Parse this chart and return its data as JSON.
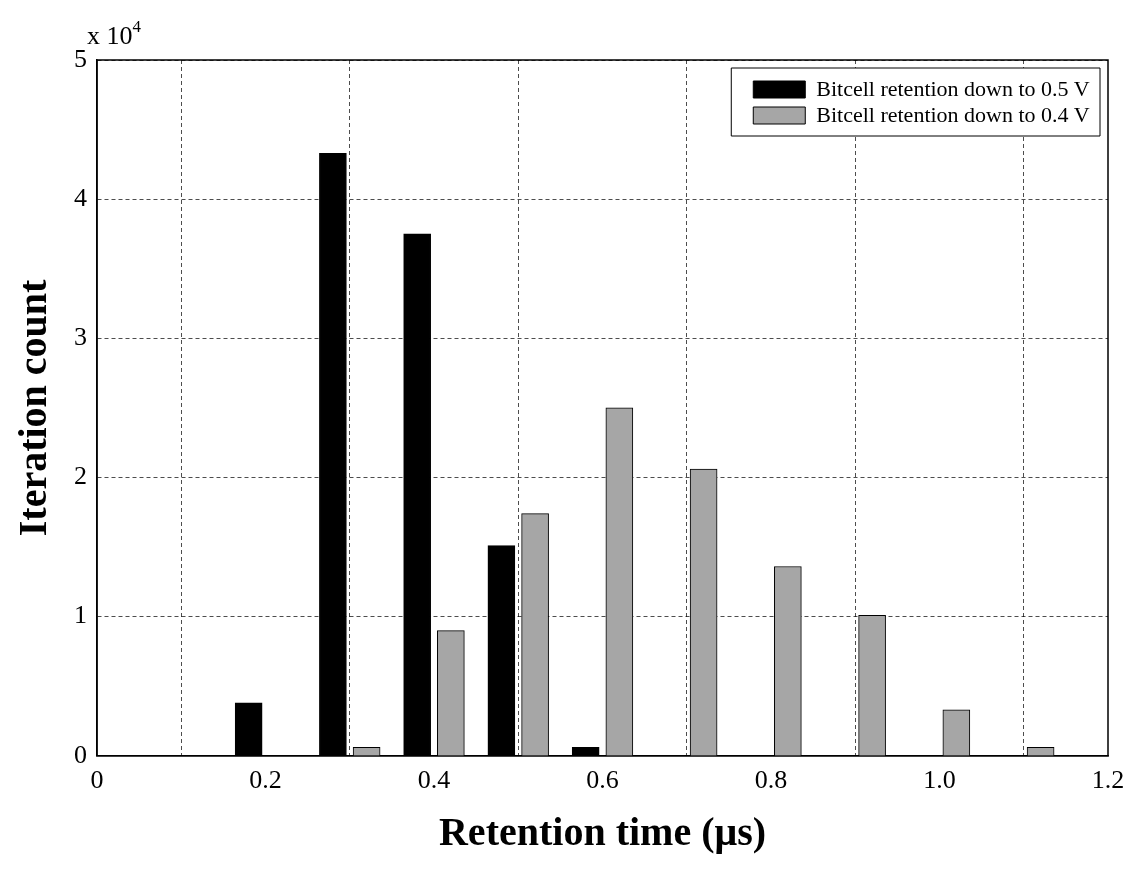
{
  "chart_data": {
    "type": "bar",
    "xlabel": "Retention time (μs)",
    "ylabel": "Iteration count",
    "annotations": [
      "x 10$^{4}$"
    ],
    "series": [
      {
        "name": "Bitcell retention down to 0.5 V",
        "color": "#000000",
        "x": [
          0.18,
          0.28,
          0.38,
          0.48,
          0.58
        ],
        "values": [
          0.38,
          4.33,
          3.75,
          1.51,
          0.06
        ]
      },
      {
        "name": "Bitcell retention down to 0.4 V",
        "color": "#a6a6a6",
        "x": [
          0.32,
          0.42,
          0.52,
          0.62,
          0.72,
          0.82,
          0.92,
          1.02,
          1.12
        ],
        "values": [
          0.06,
          0.9,
          1.74,
          2.5,
          2.06,
          1.36,
          1.01,
          0.33,
          0.06
        ]
      }
    ],
    "xlim": [
      0,
      1.2
    ],
    "xticks": [
      0,
      0.2,
      0.4,
      0.6,
      0.8,
      {
        "value": 1,
        "label": "1.0"
      },
      1.2
    ],
    "ylim": [
      0,
      5
    ],
    "yticks": [
      0,
      1,
      2,
      3,
      4,
      5
    ],
    "grid": true,
    "legend": "top right"
  }
}
